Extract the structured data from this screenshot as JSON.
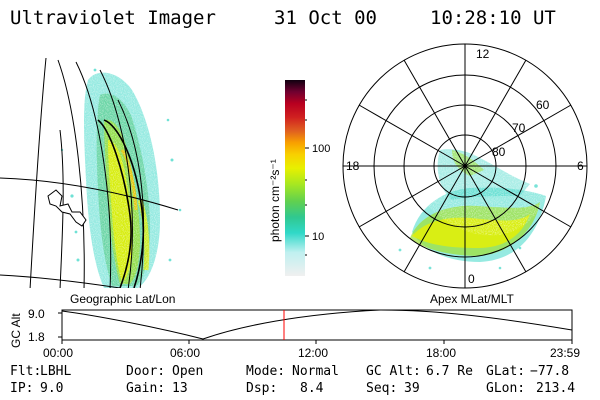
{
  "header": {
    "instrument": "Ultraviolet Imager",
    "date": "31 Oct 00",
    "time": "10:28:10 UT"
  },
  "left_panel": {
    "label": "Geographic Lat/Lon"
  },
  "right_panel": {
    "label": "Apex MLat/MLT",
    "mlt_labels": [
      "12",
      "18",
      "6",
      "0"
    ],
    "lat_labels": [
      "60",
      "70",
      "80"
    ]
  },
  "colorbar": {
    "title": "photon cm⁻²s⁻¹",
    "tick_labels": [
      "100",
      "10"
    ],
    "scale": "log",
    "colors": [
      "#f0f0f0",
      "#c8f0f0",
      "#40e0d0",
      "#20c8a0",
      "#40d060",
      "#80e040",
      "#c8f000",
      "#f0f000",
      "#f0c000",
      "#f0a000",
      "#e06000",
      "#d02000",
      "#c00010",
      "#900020",
      "#500030",
      "#200010"
    ]
  },
  "timeline": {
    "ylabel": "GC Alt",
    "yticks": [
      "9.0",
      "1.8"
    ],
    "xticks": [
      "00:00",
      "06:00",
      "12:00",
      "18:00",
      "23:59"
    ],
    "current_time": "10:28"
  },
  "footer": {
    "rows": [
      [
        {
          "label": "Flt:",
          "value": "LBHL"
        },
        {
          "label": "Door:",
          "value": "Open"
        },
        {
          "label": "Mode:",
          "value": "Normal"
        },
        {
          "label": "GC Alt:",
          "value": "6.7 Re"
        },
        {
          "label": "GLat:",
          "value": "−77.8"
        }
      ],
      [
        {
          "label": "IP:",
          "value": "9.0"
        },
        {
          "label": "Gain:",
          "value": "13"
        },
        {
          "label": "Dsp:",
          "value": "8.4"
        },
        {
          "label": "Seq:",
          "value": "39"
        },
        {
          "label": "GLon:",
          "value": "213.4"
        }
      ]
    ]
  }
}
